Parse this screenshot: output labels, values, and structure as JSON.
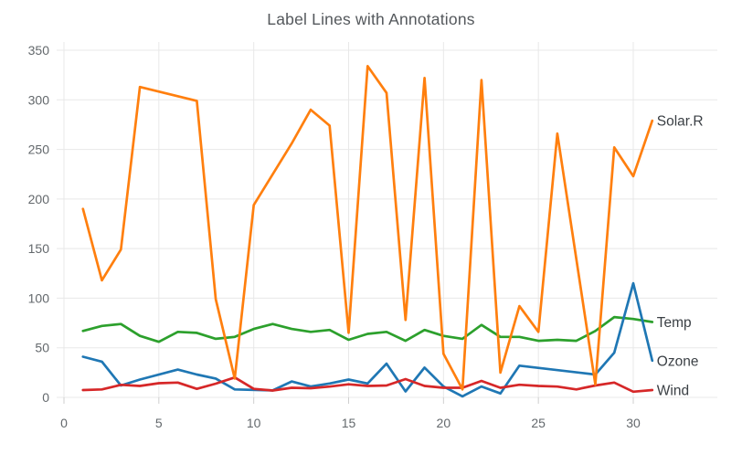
{
  "chart_data": {
    "type": "line",
    "title": "Label Lines with Annotations",
    "xlabel": "",
    "ylabel": "",
    "x": [
      1,
      2,
      3,
      4,
      5,
      6,
      7,
      8,
      9,
      10,
      11,
      12,
      13,
      14,
      15,
      16,
      17,
      18,
      19,
      20,
      21,
      22,
      23,
      24,
      25,
      26,
      27,
      28,
      29,
      30,
      31
    ],
    "series": [
      {
        "name": "Temp",
        "color": "#2ca02c",
        "values": [
          67,
          72,
          74,
          62,
          56,
          66,
          65,
          59,
          61,
          69,
          74,
          69,
          66,
          68,
          58,
          64,
          66,
          57,
          68,
          62,
          59,
          73,
          61,
          61,
          57,
          58,
          57,
          67,
          81,
          79,
          76
        ]
      },
      {
        "name": "Ozone",
        "color": "#1f77b4",
        "values": [
          41,
          36,
          12,
          18,
          null,
          28,
          23,
          19,
          8,
          null,
          7,
          16,
          11,
          14,
          18,
          14,
          34,
          6,
          30,
          11,
          1,
          11,
          4,
          32,
          null,
          null,
          null,
          23,
          45,
          115,
          37
        ]
      },
      {
        "name": "Wind",
        "color": "#d62728",
        "values": [
          7.4,
          8.0,
          12.6,
          11.5,
          14.3,
          14.9,
          8.6,
          13.8,
          20.1,
          8.6,
          6.9,
          9.7,
          9.2,
          10.9,
          13.2,
          11.5,
          12.0,
          18.4,
          11.5,
          9.7,
          9.7,
          16.6,
          9.7,
          12.7,
          11.5,
          10.9,
          8.0,
          12.0,
          14.9,
          5.7,
          7.4
        ]
      },
      {
        "name": "Solar.R",
        "color": "#ff7f0e",
        "values": [
          190,
          118,
          149,
          313,
          null,
          null,
          299,
          99,
          19,
          194,
          null,
          256,
          290,
          274,
          65,
          334,
          307,
          78,
          322,
          44,
          8,
          320,
          25,
          92,
          66,
          266,
          null,
          13,
          252,
          223,
          279
        ]
      }
    ],
    "connect_gaps": true,
    "annotations": [
      "Solar.R",
      "Temp",
      "Ozone",
      "Wind"
    ],
    "annotation_position": "end-of-line",
    "legend": false,
    "grid": true,
    "xticks": [
      0,
      5,
      10,
      15,
      20,
      25,
      30
    ],
    "yticks": [
      0,
      50,
      100,
      150,
      200,
      250,
      300,
      350
    ],
    "xlim": [
      -0.4,
      34.4
    ],
    "ylim": [
      0,
      358
    ]
  },
  "styles": {
    "grid_color": "#e8e8e8",
    "tick_mark_color": "#cfcfcf",
    "tick_text_color": "#63686c",
    "title_color": "#54585c",
    "annotation_text_color": "#3a3f44",
    "background_color": "#ffffff"
  }
}
